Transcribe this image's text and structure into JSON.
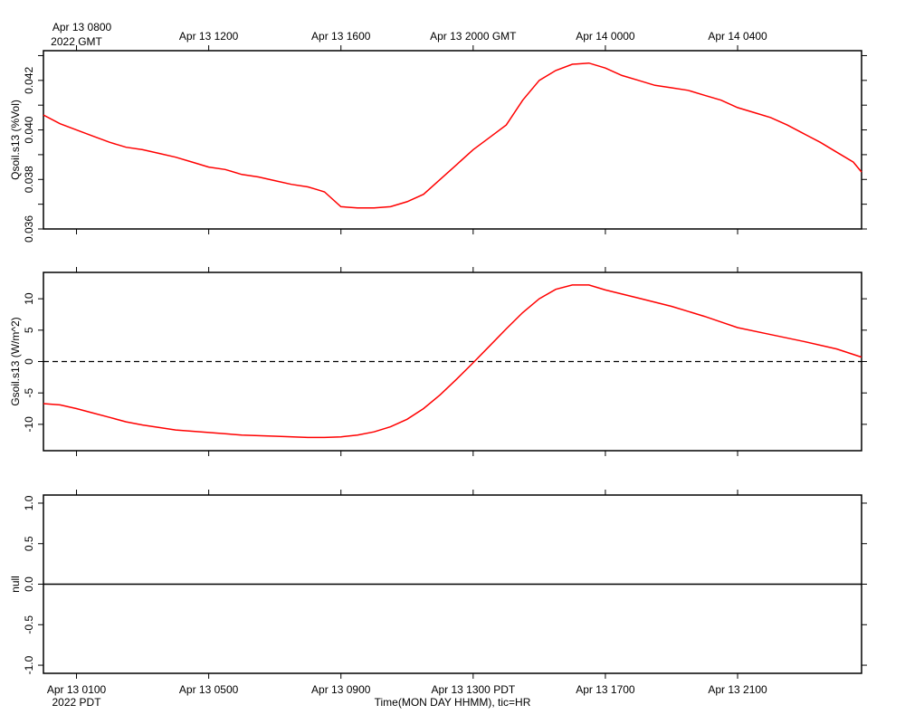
{
  "chart_data": [
    {
      "type": "line",
      "ylabel": "Qsoil.s13 (%Vol)",
      "ylim": [
        0.036,
        0.0432
      ],
      "yticks": [
        "0.036",
        "0.038",
        "0.040",
        "0.042"
      ],
      "line_color": "#ff0000",
      "series": [
        {
          "x": [
            -1,
            -0.5,
            0,
            0.5,
            1,
            1.5,
            2,
            2.5,
            3,
            3.5,
            4,
            4.5,
            5,
            5.5,
            6,
            6.5,
            7,
            7.25,
            7.5,
            8,
            8.5,
            9,
            9.5,
            10,
            10.5,
            11,
            11.5,
            12,
            12.5,
            13,
            13.5,
            14,
            14.5,
            15,
            15.5,
            16,
            16.5,
            17,
            17.5,
            18,
            18.5,
            19,
            19.5,
            20,
            20.5,
            21,
            21.5,
            22,
            22.5,
            23,
            23.5,
            23.75
          ],
          "y": [
            0.0406,
            0.04025,
            0.04,
            0.03975,
            0.0395,
            0.0393,
            0.0392,
            0.03905,
            0.0389,
            0.0387,
            0.0385,
            0.0384,
            0.0382,
            0.0381,
            0.03795,
            0.0378,
            0.0377,
            0.0376,
            0.0375,
            0.0369,
            0.03685,
            0.03685,
            0.0369,
            0.0371,
            0.0374,
            0.038,
            0.0386,
            0.0392,
            0.0397,
            0.0402,
            0.0412,
            0.042,
            0.0424,
            0.04265,
            0.0427,
            0.0425,
            0.0422,
            0.042,
            0.0418,
            0.0417,
            0.0416,
            0.0414,
            0.0412,
            0.0409,
            0.0407,
            0.0405,
            0.0402,
            0.03985,
            0.0395,
            0.0391,
            0.0387,
            0.0383
          ]
        }
      ]
    },
    {
      "type": "line",
      "ylabel": "Gsoil.s13 (W/m^2)",
      "ylim": [
        -14.2,
        14.2
      ],
      "yticks": [
        "-10",
        "-5",
        "0",
        "5",
        "10"
      ],
      "line_color": "#ff0000",
      "reference_line": 0,
      "series": [
        {
          "x": [
            -1,
            -0.5,
            0,
            0.5,
            1,
            1.5,
            2,
            3,
            4,
            5,
            6,
            7,
            7.5,
            8,
            8.5,
            9,
            9.5,
            10,
            10.5,
            11,
            11.5,
            12,
            12.5,
            13,
            13.5,
            14,
            14.5,
            15,
            15.5,
            16,
            17,
            18,
            19,
            19.5,
            20,
            21,
            22,
            23,
            23.75
          ],
          "y": [
            -6.7,
            -6.9,
            -7.5,
            -8.2,
            -8.9,
            -9.6,
            -10.1,
            -10.9,
            -11.3,
            -11.7,
            -11.9,
            -12.1,
            -12.1,
            -12.0,
            -11.7,
            -11.2,
            -10.4,
            -9.2,
            -7.5,
            -5.3,
            -2.8,
            -0.2,
            2.5,
            5.2,
            7.8,
            10.0,
            11.5,
            12.2,
            12.2,
            11.4,
            10.1,
            8.8,
            7.2,
            6.3,
            5.4,
            4.3,
            3.2,
            2.0,
            0.7
          ]
        }
      ]
    },
    {
      "type": "line",
      "ylabel": "null",
      "ylim": [
        -1.1,
        1.1
      ],
      "yticks": [
        "-1.0",
        "-0.5",
        "0.0",
        "0.5",
        "1.0"
      ],
      "line_color": "#000000",
      "series": [
        {
          "x": [
            -1,
            23.75
          ],
          "y": [
            0,
            0
          ]
        }
      ]
    }
  ],
  "time_axis": {
    "top": {
      "first_line": "Apr 13 0800",
      "first_year": "2022 GMT",
      "ticks": [
        {
          "hour": 0,
          "label": ""
        },
        {
          "hour": 4,
          "label": "Apr 13 1200"
        },
        {
          "hour": 8,
          "label": "Apr 13 1600"
        },
        {
          "hour": 12,
          "label": "Apr 13 2000 GMT"
        },
        {
          "hour": 16,
          "label": "Apr 14 0000"
        },
        {
          "hour": 20,
          "label": "Apr 14 0400"
        }
      ]
    },
    "bottom": {
      "first_year": "2022 PDT",
      "xlabel": "Time(MON DAY HHMM), tic=HR",
      "ticks": [
        {
          "hour": 0,
          "label": "Apr 13 0100"
        },
        {
          "hour": 4,
          "label": "Apr 13 0500"
        },
        {
          "hour": 8,
          "label": "Apr 13 0900"
        },
        {
          "hour": 12,
          "label": "Apr 13 1300 PDT"
        },
        {
          "hour": 16,
          "label": "Apr 13 1700"
        },
        {
          "hour": 20,
          "label": "Apr 13 2100"
        }
      ]
    }
  }
}
